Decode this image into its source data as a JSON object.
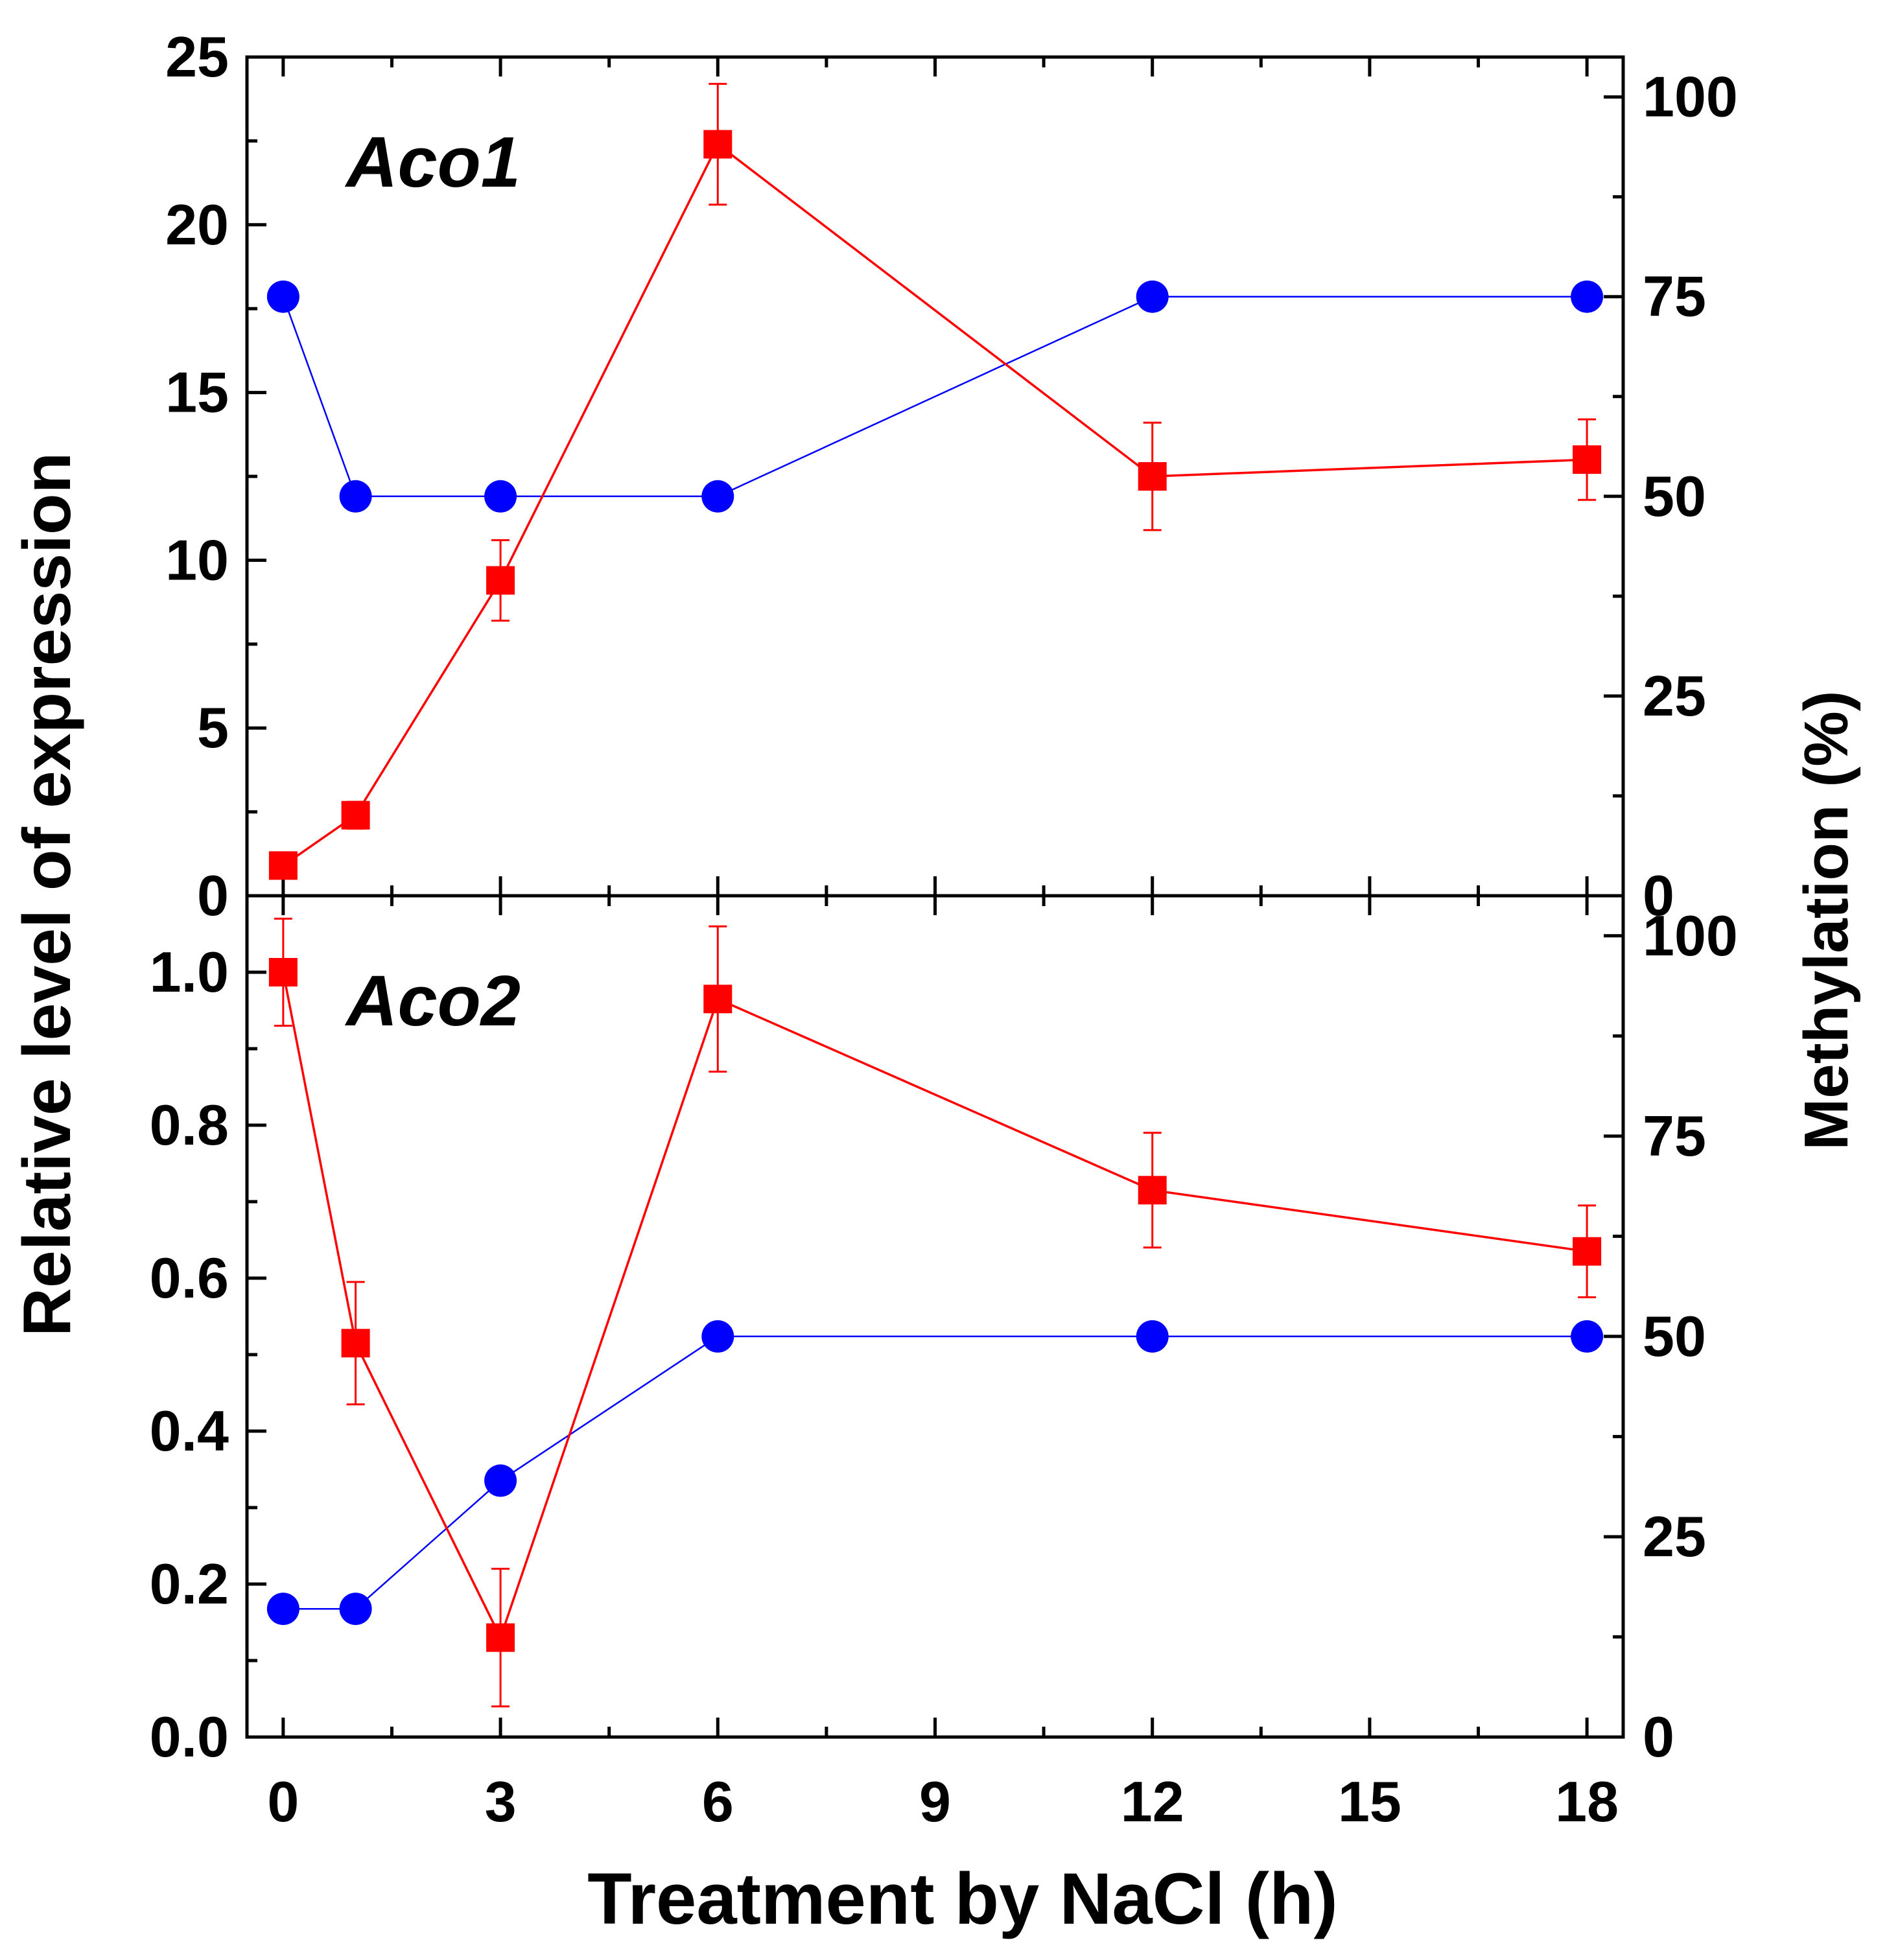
{
  "chart_data": {
    "type": "line",
    "xlabel": "Treatment by NaCl (h)",
    "ylabel_left": "Relative level of expression",
    "ylabel_right": "Methylation (%)",
    "x_ticks": [
      0,
      3,
      6,
      9,
      12,
      15,
      18
    ],
    "xlim": [
      -0.5,
      18.5
    ],
    "colors": {
      "expression": "#ff0000",
      "methylation": "#0000ff"
    },
    "panels": [
      {
        "label": "Aco1",
        "ylim_left": [
          0,
          25
        ],
        "yticks_left": [
          0,
          5,
          10,
          15,
          20,
          25
        ],
        "yticks_left_text": [
          "0",
          "5",
          "10",
          "15",
          "20",
          "25"
        ],
        "ylim_right": [
          0,
          105
        ],
        "yticks_right": [
          0,
          25,
          50,
          75,
          100
        ],
        "yticks_right_text": [
          "0",
          "25",
          "50",
          "75",
          "100"
        ],
        "series": [
          {
            "role": "expression",
            "axis": "left",
            "marker": "square",
            "x": [
              0,
              1,
              3,
              6,
              12,
              18
            ],
            "y": [
              0.9,
              2.4,
              9.4,
              22.4,
              12.5,
              13.0
            ],
            "err": [
              0.0,
              0.4,
              1.2,
              1.8,
              1.6,
              1.2
            ]
          },
          {
            "role": "methylation",
            "axis": "right",
            "marker": "circle",
            "x": [
              0,
              1,
              3,
              6,
              12,
              18
            ],
            "y": [
              75,
              50,
              50,
              50,
              75,
              75
            ]
          }
        ]
      },
      {
        "label": "Aco2",
        "ylim_left": [
          0,
          1.1
        ],
        "yticks_left": [
          0,
          0.2,
          0.4,
          0.6,
          0.8,
          1.0
        ],
        "yticks_left_text": [
          "0.0",
          "0.2",
          "0.4",
          "0.6",
          "0.8",
          "1.0"
        ],
        "ylim_right": [
          0,
          105
        ],
        "yticks_right": [
          0,
          25,
          50,
          75,
          100
        ],
        "yticks_right_text": [
          "0",
          "25",
          "50",
          "75",
          "100"
        ],
        "series": [
          {
            "role": "expression",
            "axis": "left",
            "marker": "square",
            "x": [
              0,
              1,
              3,
              6,
              12,
              18
            ],
            "y": [
              1.0,
              0.515,
              0.13,
              0.965,
              0.715,
              0.635
            ],
            "err": [
              0.07,
              0.08,
              0.09,
              0.095,
              0.075,
              0.06
            ]
          },
          {
            "role": "methylation",
            "axis": "right",
            "marker": "circle",
            "x": [
              0,
              1,
              3,
              6,
              12,
              18
            ],
            "y": [
              16,
              16,
              32,
              50,
              50,
              50
            ]
          }
        ]
      }
    ]
  }
}
